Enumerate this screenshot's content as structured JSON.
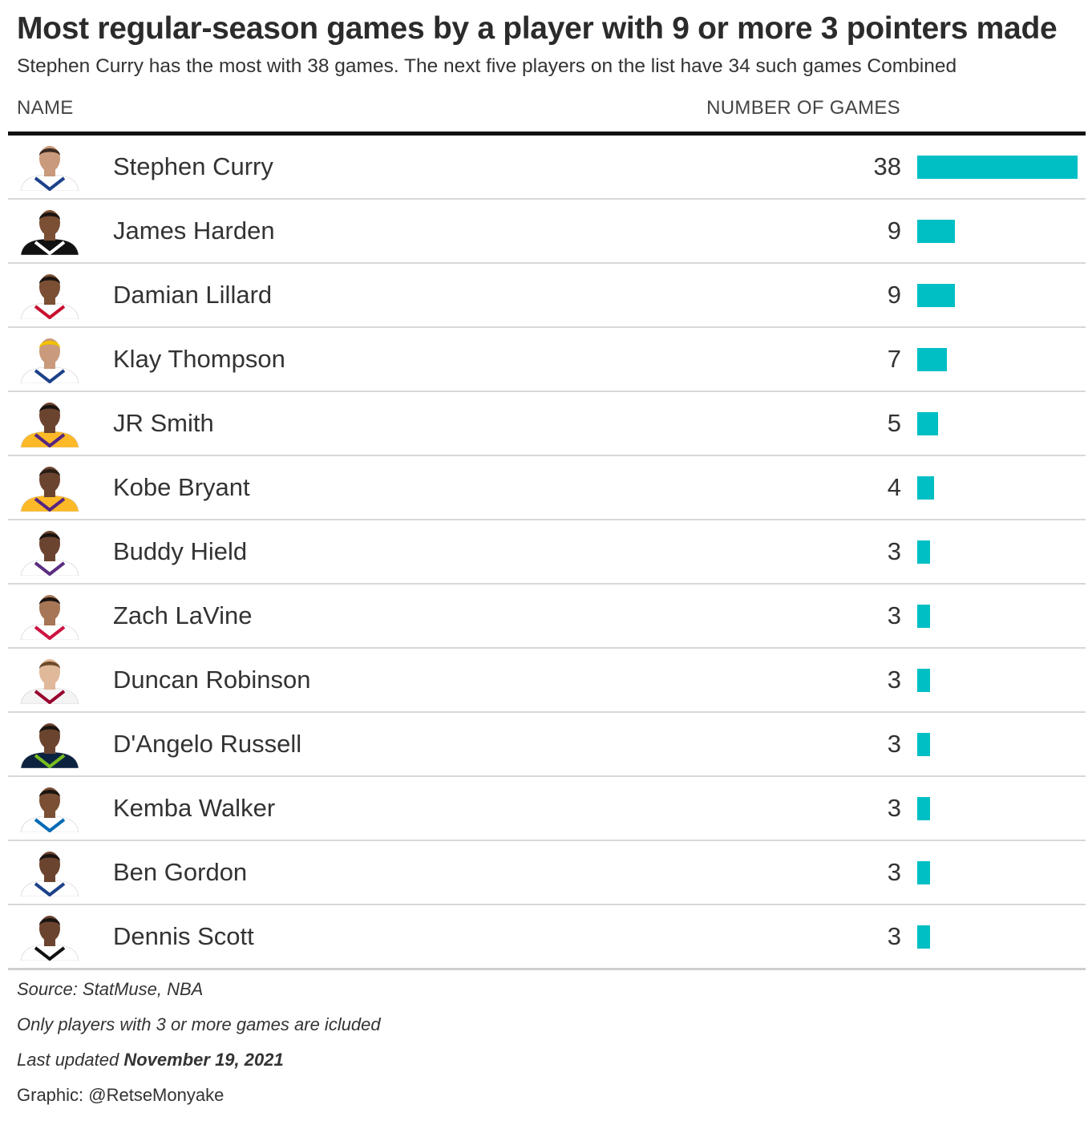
{
  "title": "Most regular-season games by a player with 9 or more 3 pointers made",
  "subtitle": "Stephen Curry has the most with 38 games. The next five players on the list have 34 such games Combined",
  "columns": {
    "name": "NAME",
    "games": "NUMBER OF GAMES"
  },
  "colors": {
    "bar": "#00bfc4",
    "rule": "#111111",
    "row_divider": "#d8d8d8"
  },
  "chart_data": {
    "type": "bar",
    "orientation": "horizontal",
    "categories": [
      "Stephen Curry",
      "James Harden",
      "Damian Lillard",
      "Klay Thompson",
      "JR Smith",
      "Kobe Bryant",
      "Buddy Hield",
      "Zach LaVine",
      "Duncan Robinson",
      "D'Angelo Russell",
      "Kemba Walker",
      "Ben Gordon",
      "Dennis Scott"
    ],
    "values": [
      38,
      9,
      9,
      7,
      5,
      4,
      3,
      3,
      3,
      3,
      3,
      3,
      3
    ],
    "xlim": [
      0,
      38
    ],
    "grid": false,
    "data_labels": true
  },
  "players": [
    {
      "name": "Stephen Curry",
      "games": "38",
      "avatar_icon": "player-headshot-icon",
      "jersey": "#ffffff",
      "trim": "#1d428a",
      "skin": "#c99a7b",
      "hair": "#3b2a20"
    },
    {
      "name": "James Harden",
      "games": "9",
      "avatar_icon": "player-headshot-icon",
      "jersey": "#111111",
      "trim": "#ffffff",
      "skin": "#7a4f34",
      "hair": "#1a1410"
    },
    {
      "name": "Damian Lillard",
      "games": "9",
      "avatar_icon": "player-headshot-icon",
      "jersey": "#ffffff",
      "trim": "#c8102e",
      "skin": "#7a4f34",
      "hair": "#1a1410"
    },
    {
      "name": "Klay Thompson",
      "games": "7",
      "avatar_icon": "player-headshot-icon",
      "jersey": "#ffffff",
      "trim": "#1d428a",
      "skin": "#c99a7b",
      "hair": "#f2c200"
    },
    {
      "name": "JR Smith",
      "games": "5",
      "avatar_icon": "player-headshot-icon",
      "jersey": "#fdb927",
      "trim": "#552583",
      "skin": "#6b4430",
      "hair": "#1a1410"
    },
    {
      "name": "Kobe Bryant",
      "games": "4",
      "avatar_icon": "player-headshot-icon",
      "jersey": "#fdb927",
      "trim": "#552583",
      "skin": "#6b4430",
      "hair": "#2a1d15"
    },
    {
      "name": "Buddy Hield",
      "games": "3",
      "avatar_icon": "player-headshot-icon",
      "jersey": "#ffffff",
      "trim": "#5a2d81",
      "skin": "#6b4430",
      "hair": "#1a1410"
    },
    {
      "name": "Zach LaVine",
      "games": "3",
      "avatar_icon": "player-headshot-icon",
      "jersey": "#ffffff",
      "trim": "#ce1141",
      "skin": "#a67656",
      "hair": "#1a1410"
    },
    {
      "name": "Duncan Robinson",
      "games": "3",
      "avatar_icon": "player-headshot-icon",
      "jersey": "#f4f4f4",
      "trim": "#98002e",
      "skin": "#e0b89a",
      "hair": "#6b4a2a"
    },
    {
      "name": "D'Angelo Russell",
      "games": "3",
      "avatar_icon": "player-headshot-icon",
      "jersey": "#0c2340",
      "trim": "#78be20",
      "skin": "#6b4430",
      "hair": "#1a1410"
    },
    {
      "name": "Kemba Walker",
      "games": "3",
      "avatar_icon": "player-headshot-icon",
      "jersey": "#ffffff",
      "trim": "#006bb6",
      "skin": "#7a4f34",
      "hair": "#1a1410"
    },
    {
      "name": "Ben Gordon",
      "games": "3",
      "avatar_icon": "player-headshot-icon",
      "jersey": "#ffffff",
      "trim": "#1d428a",
      "skin": "#6b4430",
      "hair": "#1a1410"
    },
    {
      "name": "Dennis Scott",
      "games": "3",
      "avatar_icon": "player-headshot-icon",
      "jersey": "#ffffff",
      "trim": "#111111",
      "skin": "#6b4430",
      "hair": "#1a1410"
    }
  ],
  "footer": {
    "source": "Source: StatMuse, NBA",
    "note": "Only players with 3 or more games are icluded",
    "updated_prefix": "Last updated",
    "updated_date": "November 19, 2021",
    "credit": "Graphic: @RetseMonyake"
  }
}
